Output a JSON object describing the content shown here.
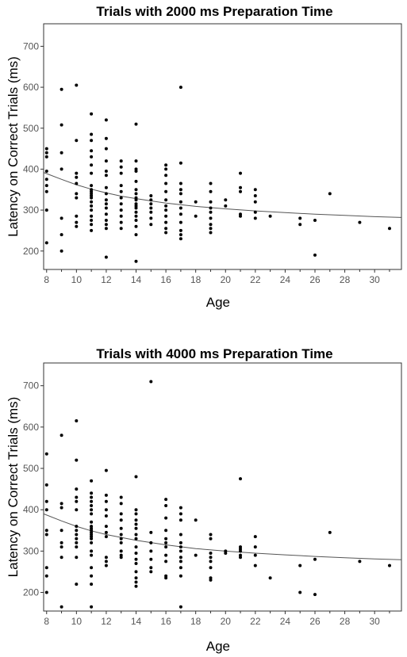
{
  "chart_data": [
    {
      "type": "scatter",
      "title": "Trials with 2000 ms Preparation Time",
      "xlabel": "Age",
      "ylabel": "Latency on Correct Trials (ms)",
      "xlim": [
        7.8,
        31.8
      ],
      "ylim": [
        155,
        755
      ],
      "xticks": [
        "8",
        "10",
        "12",
        "14",
        "16",
        "18",
        "20",
        "22",
        "24",
        "26",
        "28",
        "30"
      ],
      "yticks": [
        "200",
        "300",
        "400",
        "500",
        "600",
        "700"
      ],
      "trend_line": [
        [
          7.8,
          392
        ],
        [
          9,
          375
        ],
        [
          10,
          362
        ],
        [
          11,
          351
        ],
        [
          12,
          342
        ],
        [
          13,
          334
        ],
        [
          14,
          328
        ],
        [
          16,
          317
        ],
        [
          18,
          309
        ],
        [
          20,
          303
        ],
        [
          22,
          298
        ],
        [
          24,
          294
        ],
        [
          26,
          290
        ],
        [
          28,
          287
        ],
        [
          30,
          284
        ],
        [
          31.8,
          282
        ]
      ],
      "points": [
        [
          8,
          450
        ],
        [
          8,
          440
        ],
        [
          8,
          430
        ],
        [
          8,
          395
        ],
        [
          8,
          375
        ],
        [
          8,
          360
        ],
        [
          8,
          345
        ],
        [
          8,
          300
        ],
        [
          8,
          220
        ],
        [
          9,
          595
        ],
        [
          9,
          508
        ],
        [
          9,
          440
        ],
        [
          9,
          400
        ],
        [
          9,
          280
        ],
        [
          9,
          240
        ],
        [
          9,
          200
        ],
        [
          10,
          605
        ],
        [
          10,
          470
        ],
        [
          10,
          390
        ],
        [
          10,
          380
        ],
        [
          10,
          365
        ],
        [
          10,
          340
        ],
        [
          10,
          330
        ],
        [
          10,
          285
        ],
        [
          10,
          270
        ],
        [
          10,
          260
        ],
        [
          11,
          535
        ],
        [
          11,
          485
        ],
        [
          11,
          470
        ],
        [
          11,
          445
        ],
        [
          11,
          430
        ],
        [
          11,
          410
        ],
        [
          11,
          390
        ],
        [
          11,
          360
        ],
        [
          11,
          350
        ],
        [
          11,
          345
        ],
        [
          11,
          340
        ],
        [
          11,
          335
        ],
        [
          11,
          330
        ],
        [
          11,
          320
        ],
        [
          11,
          310
        ],
        [
          11,
          300
        ],
        [
          11,
          285
        ],
        [
          11,
          275
        ],
        [
          11,
          265
        ],
        [
          11,
          250
        ],
        [
          12,
          520
        ],
        [
          12,
          475
        ],
        [
          12,
          450
        ],
        [
          12,
          420
        ],
        [
          12,
          395
        ],
        [
          12,
          385
        ],
        [
          12,
          355
        ],
        [
          12,
          340
        ],
        [
          12,
          325
        ],
        [
          12,
          315
        ],
        [
          12,
          305
        ],
        [
          12,
          290
        ],
        [
          12,
          275
        ],
        [
          12,
          265
        ],
        [
          12,
          255
        ],
        [
          12,
          185
        ],
        [
          13,
          420
        ],
        [
          13,
          405
        ],
        [
          13,
          390
        ],
        [
          13,
          360
        ],
        [
          13,
          345
        ],
        [
          13,
          330
        ],
        [
          13,
          315
        ],
        [
          13,
          300
        ],
        [
          13,
          285
        ],
        [
          13,
          270
        ],
        [
          13,
          255
        ],
        [
          14,
          510
        ],
        [
          14,
          420
        ],
        [
          14,
          400
        ],
        [
          14,
          395
        ],
        [
          14,
          370
        ],
        [
          14,
          350
        ],
        [
          14,
          340
        ],
        [
          14,
          330
        ],
        [
          14,
          325
        ],
        [
          14,
          315
        ],
        [
          14,
          310
        ],
        [
          14,
          305
        ],
        [
          14,
          295
        ],
        [
          14,
          285
        ],
        [
          14,
          275
        ],
        [
          14,
          260
        ],
        [
          14,
          240
        ],
        [
          14,
          175
        ],
        [
          15,
          335
        ],
        [
          15,
          325
        ],
        [
          15,
          315
        ],
        [
          15,
          305
        ],
        [
          15,
          295
        ],
        [
          15,
          280
        ],
        [
          15,
          265
        ],
        [
          16,
          410
        ],
        [
          16,
          400
        ],
        [
          16,
          385
        ],
        [
          16,
          365
        ],
        [
          16,
          345
        ],
        [
          16,
          325
        ],
        [
          16,
          310
        ],
        [
          16,
          300
        ],
        [
          16,
          285
        ],
        [
          16,
          270
        ],
        [
          16,
          255
        ],
        [
          16,
          245
        ],
        [
          17,
          600
        ],
        [
          17,
          415
        ],
        [
          17,
          365
        ],
        [
          17,
          350
        ],
        [
          17,
          340
        ],
        [
          17,
          320
        ],
        [
          17,
          305
        ],
        [
          17,
          290
        ],
        [
          17,
          270
        ],
        [
          17,
          250
        ],
        [
          17,
          240
        ],
        [
          17,
          230
        ],
        [
          18,
          320
        ],
        [
          18,
          285
        ],
        [
          19,
          365
        ],
        [
          19,
          345
        ],
        [
          19,
          320
        ],
        [
          19,
          305
        ],
        [
          19,
          295
        ],
        [
          19,
          280
        ],
        [
          19,
          265
        ],
        [
          19,
          255
        ],
        [
          19,
          245
        ],
        [
          20,
          325
        ],
        [
          20,
          310
        ],
        [
          21,
          390
        ],
        [
          21,
          355
        ],
        [
          21,
          345
        ],
        [
          21,
          290
        ],
        [
          21,
          285
        ],
        [
          22,
          350
        ],
        [
          22,
          335
        ],
        [
          22,
          320
        ],
        [
          22,
          295
        ],
        [
          22,
          280
        ],
        [
          23,
          285
        ],
        [
          25,
          280
        ],
        [
          25,
          265
        ],
        [
          26,
          275
        ],
        [
          26,
          190
        ],
        [
          27,
          340
        ],
        [
          29,
          270
        ],
        [
          31,
          255
        ]
      ]
    },
    {
      "type": "scatter",
      "title": "Trials with 4000 ms Preparation Time",
      "xlabel": "Age",
      "ylabel": "Latency on Correct Trials (ms)",
      "xlim": [
        7.8,
        31.8
      ],
      "ylim": [
        155,
        755
      ],
      "xticks": [
        "8",
        "10",
        "12",
        "14",
        "16",
        "18",
        "20",
        "22",
        "24",
        "26",
        "28",
        "30"
      ],
      "yticks": [
        "200",
        "300",
        "400",
        "500",
        "600",
        "700"
      ],
      "trend_line": [
        [
          7.8,
          390
        ],
        [
          9,
          373
        ],
        [
          10,
          360
        ],
        [
          11,
          349
        ],
        [
          12,
          340
        ],
        [
          13,
          333
        ],
        [
          14,
          326
        ],
        [
          16,
          315
        ],
        [
          18,
          306
        ],
        [
          20,
          300
        ],
        [
          22,
          295
        ],
        [
          24,
          291
        ],
        [
          26,
          287
        ],
        [
          28,
          284
        ],
        [
          30,
          281
        ],
        [
          31.8,
          279
        ]
      ],
      "points": [
        [
          8,
          535
        ],
        [
          8,
          460
        ],
        [
          8,
          420
        ],
        [
          8,
          400
        ],
        [
          8,
          350
        ],
        [
          8,
          340
        ],
        [
          8,
          260
        ],
        [
          8,
          240
        ],
        [
          8,
          200
        ],
        [
          9,
          580
        ],
        [
          9,
          415
        ],
        [
          9,
          405
        ],
        [
          9,
          350
        ],
        [
          9,
          320
        ],
        [
          9,
          310
        ],
        [
          9,
          285
        ],
        [
          9,
          165
        ],
        [
          10,
          615
        ],
        [
          10,
          520
        ],
        [
          10,
          450
        ],
        [
          10,
          430
        ],
        [
          10,
          420
        ],
        [
          10,
          400
        ],
        [
          10,
          360
        ],
        [
          10,
          350
        ],
        [
          10,
          340
        ],
        [
          10,
          330
        ],
        [
          10,
          320
        ],
        [
          10,
          310
        ],
        [
          10,
          285
        ],
        [
          10,
          220
        ],
        [
          11,
          470
        ],
        [
          11,
          440
        ],
        [
          11,
          430
        ],
        [
          11,
          420
        ],
        [
          11,
          410
        ],
        [
          11,
          400
        ],
        [
          11,
          390
        ],
        [
          11,
          370
        ],
        [
          11,
          360
        ],
        [
          11,
          355
        ],
        [
          11,
          350
        ],
        [
          11,
          345
        ],
        [
          11,
          340
        ],
        [
          11,
          335
        ],
        [
          11,
          330
        ],
        [
          11,
          320
        ],
        [
          11,
          300
        ],
        [
          11,
          290
        ],
        [
          11,
          260
        ],
        [
          11,
          240
        ],
        [
          11,
          220
        ],
        [
          11,
          165
        ],
        [
          12,
          495
        ],
        [
          12,
          435
        ],
        [
          12,
          420
        ],
        [
          12,
          400
        ],
        [
          12,
          385
        ],
        [
          12,
          360
        ],
        [
          12,
          345
        ],
        [
          12,
          335
        ],
        [
          12,
          285
        ],
        [
          12,
          275
        ],
        [
          12,
          265
        ],
        [
          13,
          430
        ],
        [
          13,
          415
        ],
        [
          13,
          390
        ],
        [
          13,
          375
        ],
        [
          13,
          355
        ],
        [
          13,
          340
        ],
        [
          13,
          330
        ],
        [
          13,
          320
        ],
        [
          13,
          300
        ],
        [
          13,
          290
        ],
        [
          13,
          285
        ],
        [
          14,
          480
        ],
        [
          14,
          400
        ],
        [
          14,
          390
        ],
        [
          14,
          375
        ],
        [
          14,
          365
        ],
        [
          14,
          355
        ],
        [
          14,
          340
        ],
        [
          14,
          330
        ],
        [
          14,
          310
        ],
        [
          14,
          295
        ],
        [
          14,
          280
        ],
        [
          14,
          270
        ],
        [
          14,
          250
        ],
        [
          14,
          235
        ],
        [
          14,
          225
        ],
        [
          14,
          215
        ],
        [
          15,
          710
        ],
        [
          15,
          345
        ],
        [
          15,
          320
        ],
        [
          15,
          300
        ],
        [
          15,
          280
        ],
        [
          15,
          260
        ],
        [
          15,
          250
        ],
        [
          16,
          425
        ],
        [
          16,
          410
        ],
        [
          16,
          380
        ],
        [
          16,
          350
        ],
        [
          16,
          330
        ],
        [
          16,
          320
        ],
        [
          16,
          310
        ],
        [
          16,
          290
        ],
        [
          16,
          275
        ],
        [
          16,
          240
        ],
        [
          16,
          235
        ],
        [
          17,
          405
        ],
        [
          17,
          390
        ],
        [
          17,
          375
        ],
        [
          17,
          340
        ],
        [
          17,
          320
        ],
        [
          17,
          310
        ],
        [
          17,
          300
        ],
        [
          17,
          285
        ],
        [
          17,
          275
        ],
        [
          17,
          260
        ],
        [
          17,
          240
        ],
        [
          17,
          165
        ],
        [
          18,
          375
        ],
        [
          18,
          290
        ],
        [
          19,
          340
        ],
        [
          19,
          330
        ],
        [
          19,
          295
        ],
        [
          19,
          285
        ],
        [
          19,
          275
        ],
        [
          19,
          260
        ],
        [
          19,
          235
        ],
        [
          19,
          230
        ],
        [
          20,
          300
        ],
        [
          20,
          295
        ],
        [
          21,
          475
        ],
        [
          21,
          310
        ],
        [
          21,
          305
        ],
        [
          21,
          300
        ],
        [
          21,
          290
        ],
        [
          21,
          285
        ],
        [
          22,
          335
        ],
        [
          22,
          310
        ],
        [
          22,
          290
        ],
        [
          22,
          265
        ],
        [
          23,
          235
        ],
        [
          25,
          265
        ],
        [
          25,
          200
        ],
        [
          26,
          280
        ],
        [
          26,
          195
        ],
        [
          27,
          345
        ],
        [
          29,
          275
        ],
        [
          31,
          265
        ]
      ]
    }
  ]
}
